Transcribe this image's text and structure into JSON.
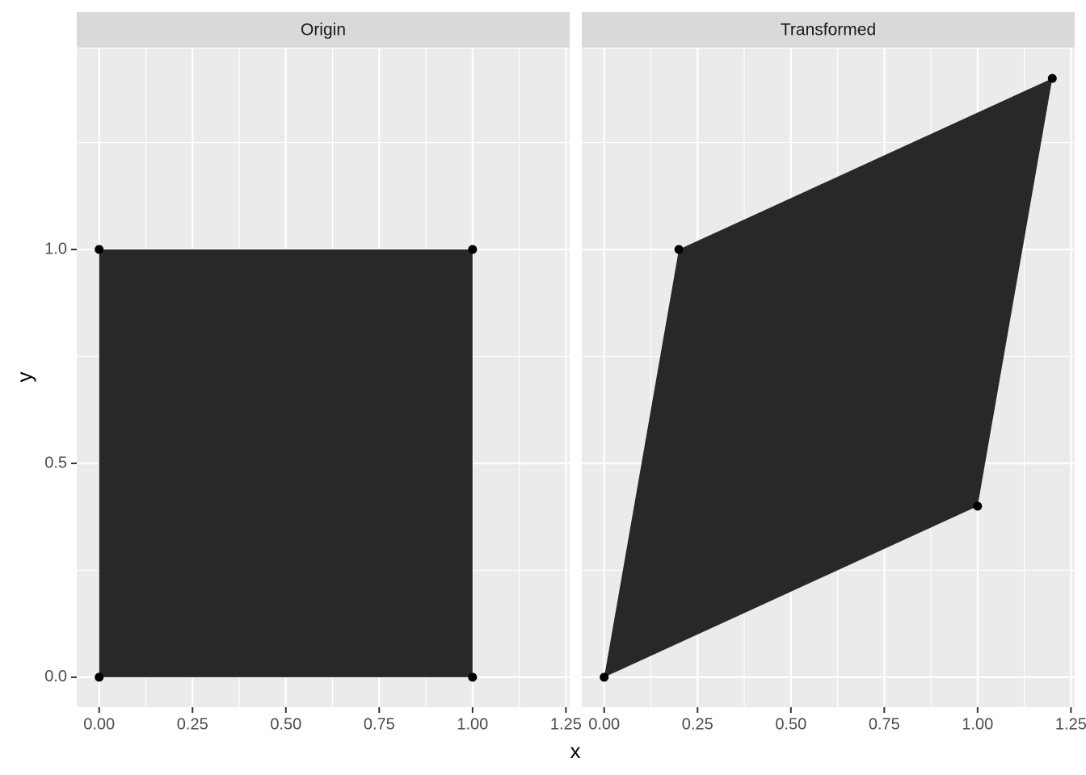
{
  "chart_data": {
    "type": "polygon",
    "x_label": "x",
    "y_label": "y",
    "xlim": [
      -0.06,
      1.26
    ],
    "ylim": [
      -0.07,
      1.47
    ],
    "xticks": [
      {
        "value": 0,
        "label": "0.00"
      },
      {
        "value": 0.25,
        "label": "0.25"
      },
      {
        "value": 0.5,
        "label": "0.50"
      },
      {
        "value": 0.75,
        "label": "0.75"
      },
      {
        "value": 1,
        "label": "1.00"
      },
      {
        "value": 1.25,
        "label": "1.25"
      }
    ],
    "yticks": [
      {
        "value": 0,
        "label": "0.0"
      },
      {
        "value": 0.5,
        "label": "0.5"
      },
      {
        "value": 1,
        "label": "1.0"
      }
    ],
    "x_minor_ticks": [
      0.125,
      0.375,
      0.625,
      0.875,
      1.125
    ],
    "y_minor_ticks": [
      0.25,
      0.75,
      1.25
    ],
    "grid": true,
    "fill": "#282828",
    "point_color": "#000000",
    "facets": [
      {
        "title": "Origin",
        "x": [
          0,
          1,
          1,
          0
        ],
        "y": [
          0,
          0,
          1,
          1
        ]
      },
      {
        "title": "Transformed",
        "x": [
          0,
          1,
          1.2,
          0.2
        ],
        "y": [
          0,
          0.4,
          1.4,
          1
        ]
      }
    ]
  }
}
